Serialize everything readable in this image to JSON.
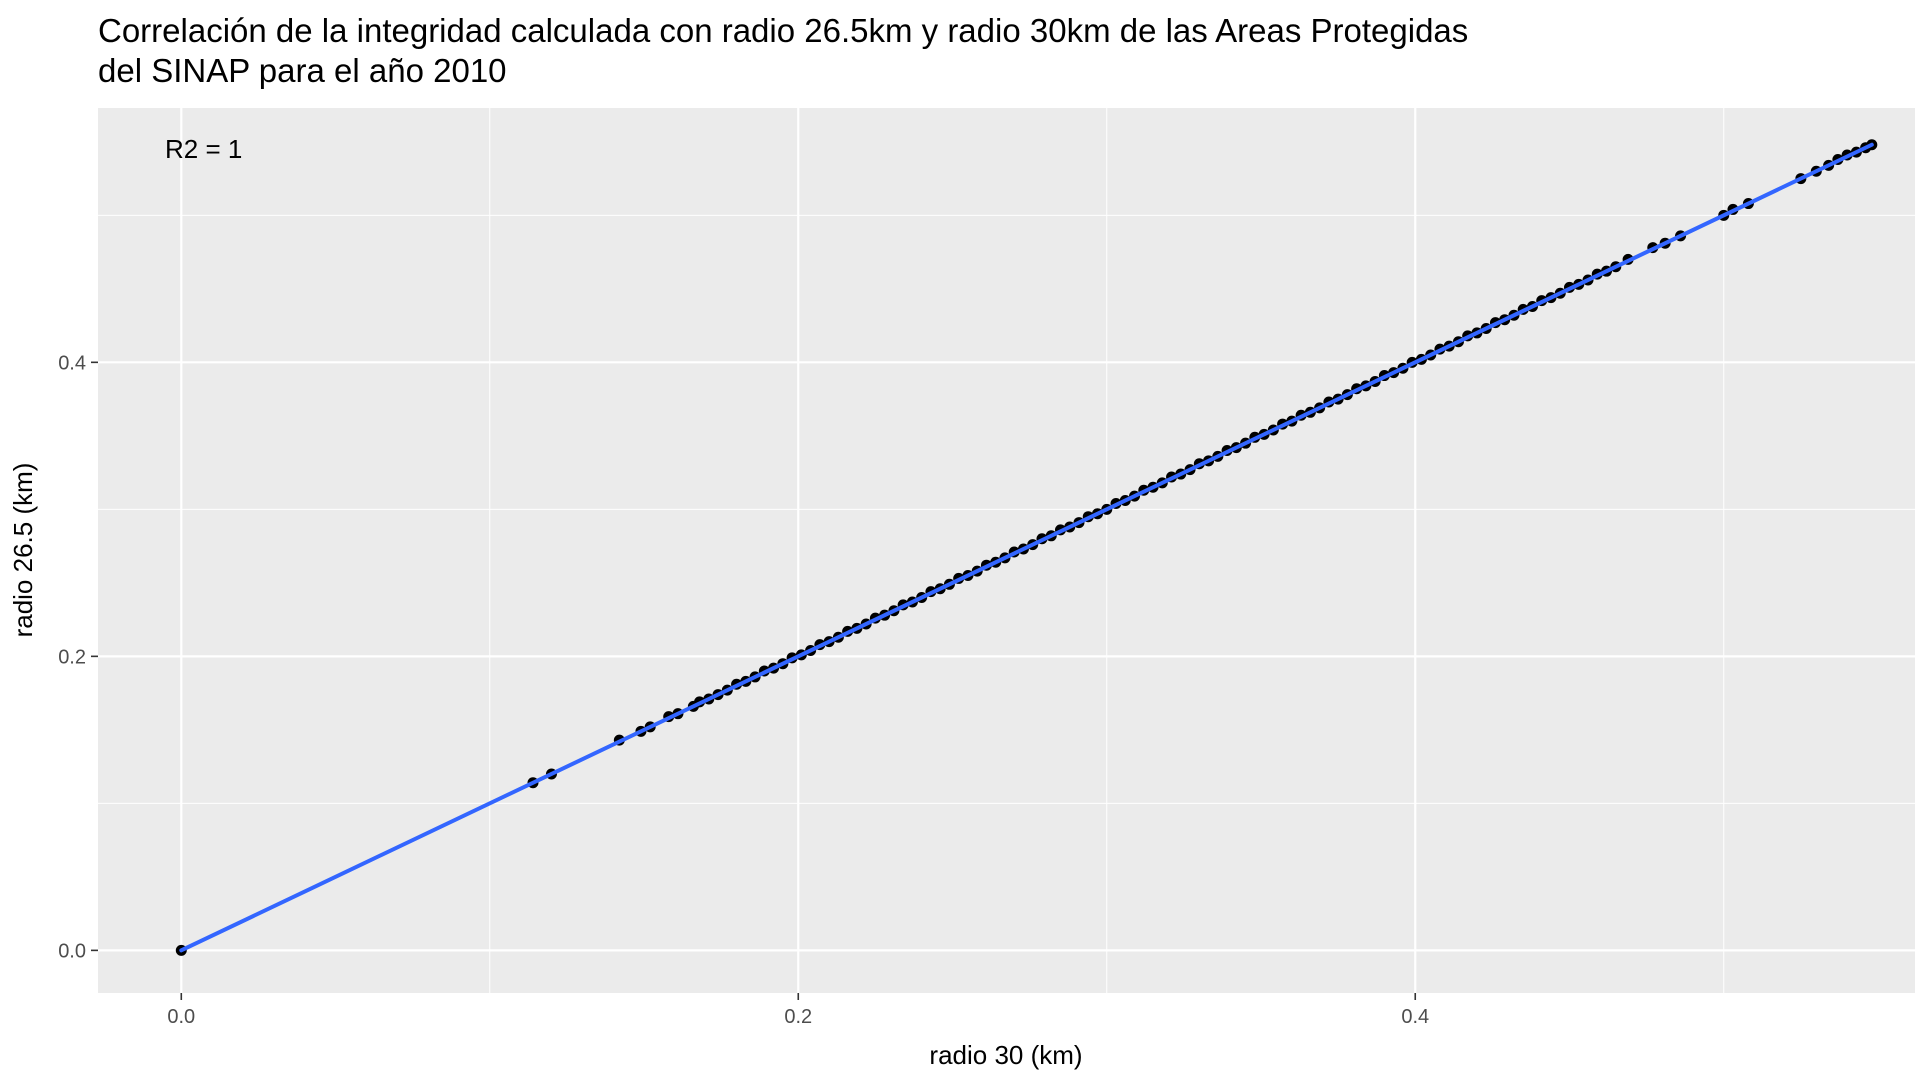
{
  "chart_data": {
    "type": "scatter",
    "title_lines": [
      "Correlación de la integridad calculada con radio 26.5km y radio 30km de las Areas Protegidas",
      "del SINAP para el año 2010"
    ],
    "xlabel": "radio 30 (km)",
    "ylabel": "radio 26.5 (km)",
    "xlim": [
      -0.027,
      0.562
    ],
    "ylim": [
      -0.029,
      0.573
    ],
    "x_ticks": [
      {
        "value": 0.0,
        "label": "0.0"
      },
      {
        "value": 0.2,
        "label": "0.2"
      },
      {
        "value": 0.4,
        "label": "0.4"
      }
    ],
    "y_ticks": [
      {
        "value": 0.0,
        "label": "0.0"
      },
      {
        "value": 0.2,
        "label": "0.2"
      },
      {
        "value": 0.4,
        "label": "0.4"
      }
    ],
    "x_minor": [
      0.1,
      0.3,
      0.5
    ],
    "y_minor": [
      0.1,
      0.3,
      0.5
    ],
    "grid": true,
    "annotation": "R2 = 1",
    "fit_line": {
      "x": [
        0.0,
        0.548
      ],
      "y": [
        0.0,
        0.548
      ],
      "color": "#3366FF"
    },
    "point_color": "#000000",
    "points": {
      "x": [
        0.0,
        0.114,
        0.12,
        0.142,
        0.149,
        0.152,
        0.158,
        0.161,
        0.166,
        0.168,
        0.171,
        0.174,
        0.177,
        0.18,
        0.183,
        0.186,
        0.189,
        0.192,
        0.195,
        0.198,
        0.201,
        0.204,
        0.207,
        0.21,
        0.213,
        0.216,
        0.219,
        0.222,
        0.225,
        0.228,
        0.231,
        0.234,
        0.237,
        0.24,
        0.243,
        0.246,
        0.249,
        0.252,
        0.255,
        0.258,
        0.261,
        0.264,
        0.267,
        0.27,
        0.273,
        0.276,
        0.279,
        0.282,
        0.285,
        0.288,
        0.291,
        0.294,
        0.297,
        0.3,
        0.303,
        0.306,
        0.309,
        0.312,
        0.315,
        0.318,
        0.321,
        0.324,
        0.327,
        0.33,
        0.333,
        0.336,
        0.339,
        0.342,
        0.345,
        0.348,
        0.351,
        0.354,
        0.357,
        0.36,
        0.363,
        0.366,
        0.369,
        0.372,
        0.375,
        0.378,
        0.381,
        0.384,
        0.387,
        0.39,
        0.393,
        0.396,
        0.399,
        0.402,
        0.405,
        0.408,
        0.411,
        0.414,
        0.417,
        0.42,
        0.423,
        0.426,
        0.429,
        0.432,
        0.435,
        0.438,
        0.441,
        0.444,
        0.447,
        0.45,
        0.453,
        0.456,
        0.459,
        0.462,
        0.465,
        0.469,
        0.477,
        0.481,
        0.486,
        0.5,
        0.503,
        0.508,
        0.525,
        0.53,
        0.534,
        0.537,
        0.54,
        0.543,
        0.546,
        0.548
      ],
      "y": [
        0.0,
        0.114,
        0.12,
        0.143,
        0.149,
        0.152,
        0.159,
        0.161,
        0.166,
        0.169,
        0.171,
        0.174,
        0.177,
        0.181,
        0.183,
        0.186,
        0.19,
        0.192,
        0.195,
        0.199,
        0.201,
        0.204,
        0.208,
        0.21,
        0.213,
        0.217,
        0.219,
        0.222,
        0.226,
        0.228,
        0.231,
        0.235,
        0.237,
        0.24,
        0.244,
        0.246,
        0.249,
        0.253,
        0.255,
        0.258,
        0.262,
        0.264,
        0.267,
        0.271,
        0.273,
        0.276,
        0.28,
        0.282,
        0.286,
        0.288,
        0.291,
        0.295,
        0.297,
        0.3,
        0.304,
        0.306,
        0.309,
        0.313,
        0.315,
        0.318,
        0.322,
        0.324,
        0.327,
        0.331,
        0.333,
        0.336,
        0.34,
        0.342,
        0.345,
        0.349,
        0.351,
        0.354,
        0.358,
        0.36,
        0.364,
        0.366,
        0.369,
        0.373,
        0.375,
        0.378,
        0.382,
        0.384,
        0.387,
        0.391,
        0.393,
        0.396,
        0.4,
        0.402,
        0.405,
        0.409,
        0.411,
        0.414,
        0.418,
        0.42,
        0.423,
        0.427,
        0.429,
        0.432,
        0.436,
        0.438,
        0.442,
        0.444,
        0.447,
        0.451,
        0.453,
        0.456,
        0.46,
        0.462,
        0.465,
        0.47,
        0.478,
        0.481,
        0.486,
        0.5,
        0.504,
        0.508,
        0.525,
        0.53,
        0.534,
        0.538,
        0.541,
        0.543,
        0.546,
        0.548
      ]
    }
  }
}
